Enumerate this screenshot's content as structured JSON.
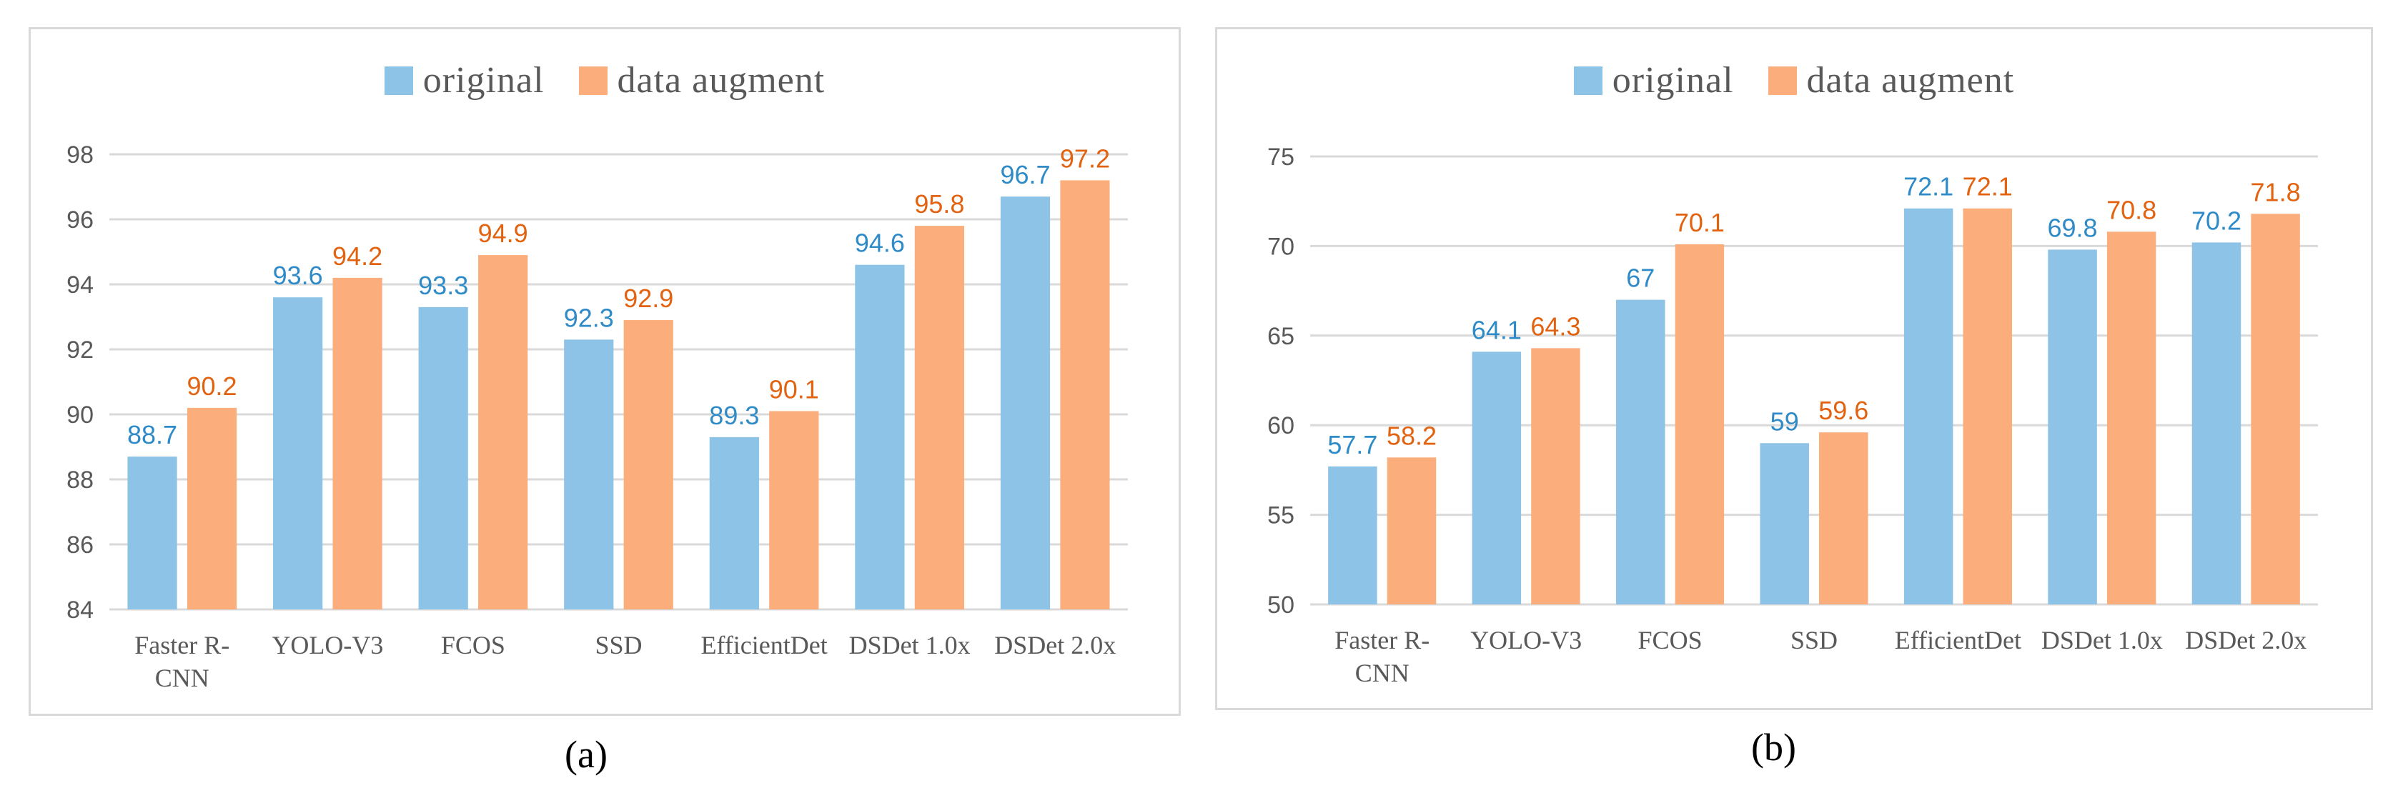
{
  "colors": {
    "original": "#8dc3e6",
    "augment": "#fbae7c",
    "original_label": "#2e8bc8",
    "augment_label": "#e2620f",
    "grid": "#d9d9d9"
  },
  "chart_data": [
    {
      "type": "bar",
      "panel": "a",
      "caption": "(a)",
      "categories": [
        "Faster R-CNN",
        "YOLO-V3",
        "FCOS",
        "SSD",
        "EfficientDet",
        "DSDet 1.0x",
        "DSDet 2.0x"
      ],
      "category_lines": [
        [
          "Faster R-",
          "CNN"
        ],
        [
          "YOLO-V3"
        ],
        [
          "FCOS"
        ],
        [
          "SSD"
        ],
        [
          "EfficientDet"
        ],
        [
          "DSDet 1.0x"
        ],
        [
          "DSDet 2.0x"
        ]
      ],
      "series": [
        {
          "name": "original",
          "values": [
            88.7,
            93.6,
            93.3,
            92.3,
            89.3,
            94.6,
            96.7
          ]
        },
        {
          "name": "data augment",
          "values": [
            90.2,
            94.2,
            94.9,
            92.9,
            90.1,
            95.8,
            97.2
          ]
        }
      ],
      "ylim": [
        84,
        98
      ],
      "yticks": [
        84,
        86,
        88,
        90,
        92,
        94,
        96,
        98
      ],
      "legend": "top-center",
      "grid": true
    },
    {
      "type": "bar",
      "panel": "b",
      "caption": "(b)",
      "categories": [
        "Faster R-CNN",
        "YOLO-V3",
        "FCOS",
        "SSD",
        "EfficientDet",
        "DSDet 1.0x",
        "DSDet 2.0x"
      ],
      "category_lines": [
        [
          "Faster R-",
          "CNN"
        ],
        [
          "YOLO-V3"
        ],
        [
          "FCOS"
        ],
        [
          "SSD"
        ],
        [
          "EfficientDet"
        ],
        [
          "DSDet 1.0x"
        ],
        [
          "DSDet 2.0x"
        ]
      ],
      "series": [
        {
          "name": "original",
          "values": [
            57.7,
            64.1,
            67,
            59,
            72.1,
            69.8,
            70.2
          ]
        },
        {
          "name": "data augment",
          "values": [
            58.2,
            64.3,
            70.1,
            59.6,
            72.1,
            70.8,
            71.8
          ]
        }
      ],
      "ylim": [
        50,
        75
      ],
      "yticks": [
        50,
        55,
        60,
        65,
        70,
        75
      ],
      "legend": "top-center",
      "grid": true
    }
  ]
}
